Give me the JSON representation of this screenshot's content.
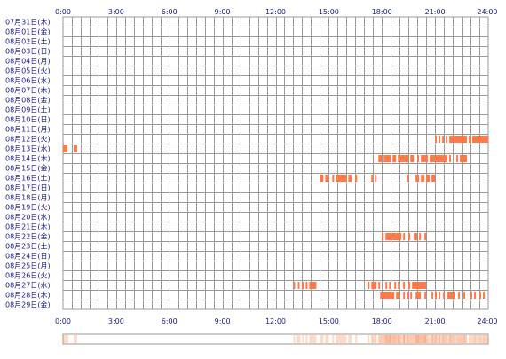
{
  "colors": {
    "accent": "#ff7a4a",
    "grid": "#9a9a9a",
    "label": "#1a1a8c",
    "strip_light": "#ffe6d8",
    "strip_dark": "#ff9d70"
  },
  "chart_data": {
    "type": "heatmap",
    "title": "",
    "xlabel": "",
    "ylabel": "",
    "xlim": [
      0,
      24
    ],
    "x_ticks": [
      "0:00",
      "3:00",
      "6:00",
      "9:00",
      "12:00",
      "15:00",
      "18:00",
      "21:00",
      "24:00"
    ],
    "grid": true,
    "days": [
      "07月31日(木)",
      "08月01日(金)",
      "08月02日(土)",
      "08月03日(日)",
      "08月04日(月)",
      "08月05日(火)",
      "08月06日(水)",
      "08月07日(木)",
      "08月08日(金)",
      "08月09日(土)",
      "08月10日(日)",
      "08月11日(月)",
      "08月12日(火)",
      "08月13日(水)",
      "08月14日(木)",
      "08月15日(金)",
      "08月16日(土)",
      "08月17日(日)",
      "08月18日(月)",
      "08月19日(火)",
      "08月20日(水)",
      "08月21日(木)",
      "08月22日(金)",
      "08月23日(土)",
      "08月24日(日)",
      "08月25日(月)",
      "08月26日(火)",
      "08月27日(水)",
      "08月28日(木)",
      "08月29日(金)"
    ],
    "activity": [
      {
        "day": "08月12日(火)",
        "ranges": [
          [
            21.0,
            21.1
          ],
          [
            21.2,
            21.3
          ],
          [
            21.4,
            21.5
          ],
          [
            21.6,
            21.7
          ],
          [
            21.8,
            22.8
          ],
          [
            22.9,
            23.0
          ],
          [
            23.1,
            24.0
          ]
        ]
      },
      {
        "day": "08月13日(水)",
        "ranges": [
          [
            0.0,
            0.25
          ],
          [
            0.6,
            0.8
          ]
        ]
      },
      {
        "day": "08月14日(木)",
        "ranges": [
          [
            17.8,
            18.0
          ],
          [
            18.1,
            18.5
          ],
          [
            18.6,
            18.8
          ],
          [
            18.9,
            19.5
          ],
          [
            19.6,
            19.8
          ],
          [
            20.0,
            20.1
          ],
          [
            20.2,
            20.6
          ],
          [
            20.7,
            21.7
          ],
          [
            21.8,
            21.9
          ],
          [
            22.2,
            22.3
          ],
          [
            22.4,
            22.8
          ]
        ]
      },
      {
        "day": "08月16日(土)",
        "ranges": [
          [
            14.5,
            14.7
          ],
          [
            14.8,
            15.0
          ],
          [
            15.2,
            15.3
          ],
          [
            15.4,
            16.0
          ],
          [
            16.1,
            16.3
          ],
          [
            16.5,
            16.6
          ],
          [
            17.4,
            17.5
          ],
          [
            17.6,
            17.7
          ],
          [
            19.4,
            19.5
          ],
          [
            19.9,
            20.1
          ],
          [
            20.2,
            20.4
          ],
          [
            20.5,
            20.7
          ],
          [
            20.8,
            21.0
          ]
        ]
      },
      {
        "day": "08月22日(金)",
        "ranges": [
          [
            18.0,
            18.1
          ],
          [
            18.2,
            19.1
          ],
          [
            19.2,
            19.3
          ],
          [
            19.5,
            19.6
          ],
          [
            19.8,
            20.0
          ],
          [
            20.1,
            20.2
          ],
          [
            20.4,
            20.5
          ]
        ]
      },
      {
        "day": "08月27日(水)",
        "ranges": [
          [
            13.0,
            13.1
          ],
          [
            13.25,
            13.35
          ],
          [
            13.5,
            13.6
          ],
          [
            13.7,
            13.8
          ],
          [
            13.9,
            14.3
          ],
          [
            17.2,
            17.3
          ],
          [
            17.4,
            17.7
          ],
          [
            17.8,
            17.9
          ],
          [
            18.2,
            18.3
          ],
          [
            18.4,
            18.5
          ],
          [
            18.7,
            18.8
          ],
          [
            18.9,
            19.0
          ],
          [
            19.2,
            19.3
          ],
          [
            19.5,
            19.6
          ],
          [
            19.7,
            20.5
          ]
        ]
      },
      {
        "day": "08月28日(木)",
        "ranges": [
          [
            17.9,
            18.7
          ],
          [
            18.8,
            19.0
          ],
          [
            19.2,
            19.3
          ],
          [
            19.4,
            19.5
          ],
          [
            19.6,
            19.7
          ],
          [
            19.9,
            20.2
          ],
          [
            20.4,
            20.5
          ],
          [
            20.8,
            20.9
          ],
          [
            21.0,
            21.1
          ],
          [
            21.2,
            21.3
          ],
          [
            21.45,
            21.55
          ],
          [
            21.7,
            22.1
          ],
          [
            22.3,
            22.4
          ],
          [
            22.6,
            22.7
          ],
          [
            23.0,
            23.1
          ],
          [
            23.2,
            23.3
          ],
          [
            23.5,
            23.6
          ],
          [
            23.7,
            23.8
          ]
        ]
      }
    ]
  }
}
